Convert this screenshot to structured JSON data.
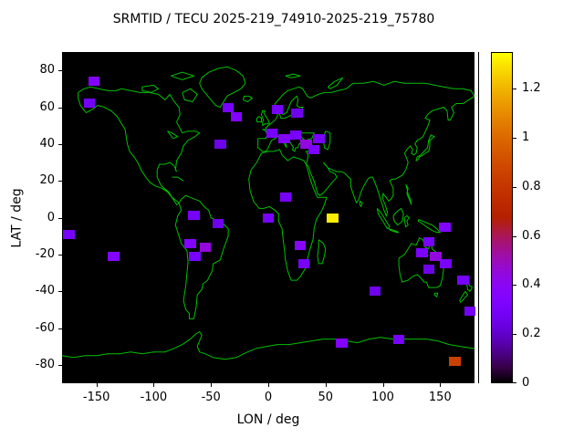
{
  "title": "SRMTID / TECU 2025-219_74910-2025-219_75780",
  "chart_data": {
    "type": "heatmap",
    "title": "SRMTID / TECU 2025-219_74910-2025-219_75780",
    "xlabel": "LON / deg",
    "ylabel": "LAT / deg",
    "xlim": [
      -180,
      180
    ],
    "ylim": [
      -90,
      90
    ],
    "x_ticks": [
      -150,
      -100,
      -50,
      0,
      50,
      100,
      150
    ],
    "y_ticks": [
      -80,
      -60,
      -40,
      -20,
      0,
      20,
      40,
      60,
      80
    ],
    "grid": false,
    "plot_background": "#000000",
    "coastline_color": "#00c000",
    "cell_size_deg": {
      "lon": 10,
      "lat": 5
    },
    "colorbar": {
      "min": 0,
      "max": 1.35,
      "ticks": [
        0,
        0.2,
        0.4,
        0.6,
        0.8,
        1,
        1.2
      ],
      "colormap": "gnuplot",
      "position": "right"
    },
    "points": [
      {
        "lon": -152,
        "lat": 74,
        "value": 0.35
      },
      {
        "lon": -156,
        "lat": 62,
        "value": 0.28
      },
      {
        "lon": -35,
        "lat": 60,
        "value": 0.3
      },
      {
        "lon": -28,
        "lat": 55,
        "value": 0.35
      },
      {
        "lon": 8,
        "lat": 59,
        "value": 0.3
      },
      {
        "lon": 25,
        "lat": 57,
        "value": 0.25
      },
      {
        "lon": -42,
        "lat": 40,
        "value": 0.25
      },
      {
        "lon": 3,
        "lat": 46,
        "value": 0.3
      },
      {
        "lon": 14,
        "lat": 43,
        "value": 0.35
      },
      {
        "lon": 24,
        "lat": 45,
        "value": 0.3
      },
      {
        "lon": 33,
        "lat": 40,
        "value": 0.45
      },
      {
        "lon": 44,
        "lat": 43,
        "value": 0.3
      },
      {
        "lon": 40,
        "lat": 37,
        "value": 0.32
      },
      {
        "lon": 15,
        "lat": 11,
        "value": 0.3
      },
      {
        "lon": 0,
        "lat": 0,
        "value": 0.3
      },
      {
        "lon": 56,
        "lat": 0,
        "value": 1.32
      },
      {
        "lon": 28,
        "lat": -15,
        "value": 0.38
      },
      {
        "lon": 31,
        "lat": -25,
        "value": 0.3
      },
      {
        "lon": -65,
        "lat": 1,
        "value": 0.3
      },
      {
        "lon": -44,
        "lat": -3,
        "value": 0.25
      },
      {
        "lon": -68,
        "lat": -14,
        "value": 0.35
      },
      {
        "lon": -55,
        "lat": -16,
        "value": 0.45
      },
      {
        "lon": -64,
        "lat": -21,
        "value": 0.3
      },
      {
        "lon": -174,
        "lat": -9,
        "value": 0.3
      },
      {
        "lon": -135,
        "lat": -21,
        "value": 0.35
      },
      {
        "lon": 154,
        "lat": -5,
        "value": 0.35
      },
      {
        "lon": 140,
        "lat": -13,
        "value": 0.3
      },
      {
        "lon": 134,
        "lat": -19,
        "value": 0.32
      },
      {
        "lon": 146,
        "lat": -21,
        "value": 0.45
      },
      {
        "lon": 155,
        "lat": -25,
        "value": 0.3
      },
      {
        "lon": 140,
        "lat": -28,
        "value": 0.25
      },
      {
        "lon": 170,
        "lat": -34,
        "value": 0.3
      },
      {
        "lon": 93,
        "lat": -40,
        "value": 0.25
      },
      {
        "lon": 176,
        "lat": -51,
        "value": 0.28
      },
      {
        "lon": 64,
        "lat": -68,
        "value": 0.35
      },
      {
        "lon": 114,
        "lat": -66,
        "value": 0.3
      },
      {
        "lon": 163,
        "lat": -78,
        "value": 0.85
      }
    ]
  }
}
